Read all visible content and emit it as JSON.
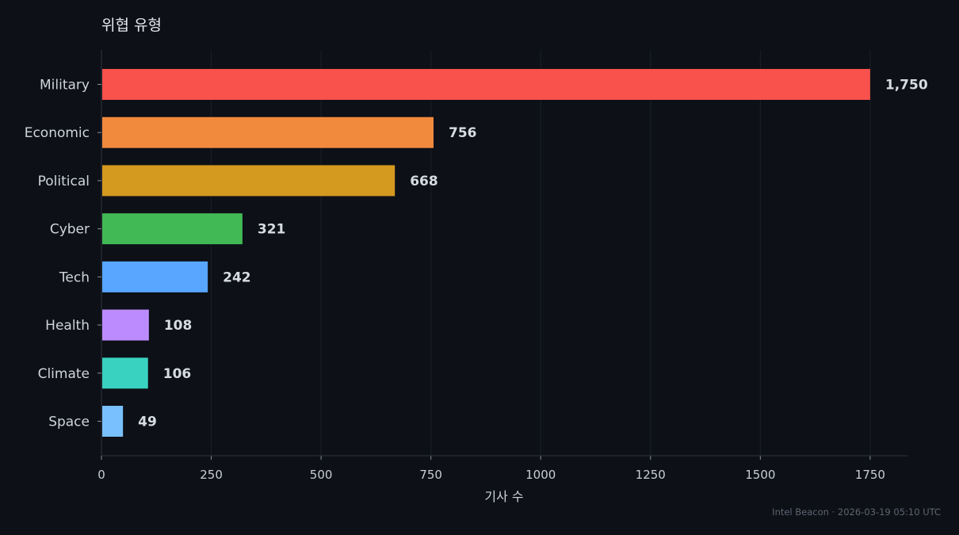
{
  "chart_data": {
    "type": "bar",
    "orientation": "horizontal",
    "title": "위협 유형",
    "xlabel": "기사 수",
    "ylabel": "",
    "xlim": [
      0,
      1835
    ],
    "xticks": [
      0,
      250,
      500,
      750,
      1000,
      1250,
      1500,
      1750
    ],
    "grid": true,
    "categories": [
      "Military",
      "Economic",
      "Political",
      "Cyber",
      "Tech",
      "Health",
      "Climate",
      "Space"
    ],
    "values": [
      1750,
      756,
      668,
      321,
      242,
      108,
      106,
      49
    ],
    "value_labels": [
      "1,750",
      "756",
      "668",
      "321",
      "242",
      "108",
      "106",
      "49"
    ],
    "colors": [
      "#f9514b",
      "#f28a3d",
      "#d4991f",
      "#41b954",
      "#58a6ff",
      "#bc8cff",
      "#39d2c0",
      "#79c0ff"
    ]
  },
  "footer": "Intel Beacon · 2026-03-19 05:10 UTC"
}
